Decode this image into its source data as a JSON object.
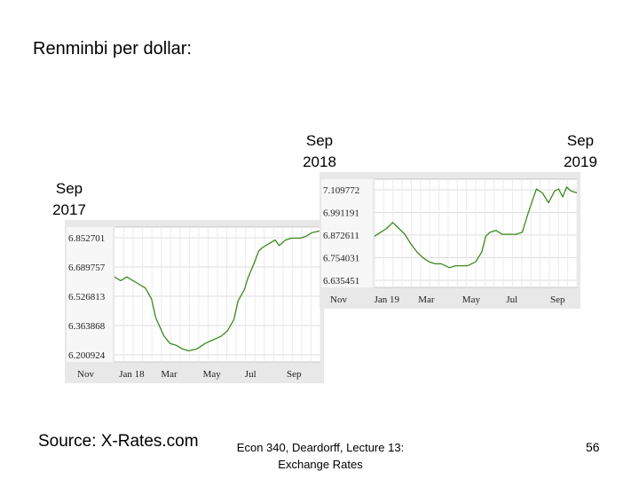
{
  "slide": {
    "title": "Renminbi per dollar:",
    "source": "Source:  X-Rates.com",
    "footer": "Econ 340, Deardorff, Lecture 13: Exchange Rates",
    "page_number": "56",
    "labels": {
      "sep2017": "Sep 2017",
      "sep2018": "Sep 2018",
      "sep2019": "Sep 2019"
    }
  },
  "colors": {
    "line": "#3c8a1e",
    "grid": "#dcdcdc",
    "axis_bg": "#e8e8e8"
  },
  "chart_data": [
    {
      "type": "line",
      "title": "",
      "xlabel": "",
      "ylabel": "",
      "grid": true,
      "x_ticks": [
        "Nov",
        "Jan 18",
        "Mar",
        "May",
        "Jul",
        "Sep"
      ],
      "y_ticks": [
        "6.852701",
        "6.689757",
        "6.526813",
        "6.363868",
        "6.200924"
      ],
      "ylim": [
        6.16,
        6.89
      ],
      "series": [
        {
          "x": [
            0,
            0.03,
            0.06,
            0.09,
            0.12,
            0.15,
            0.18,
            0.2,
            0.24,
            0.27,
            0.3,
            0.33,
            0.36,
            0.4,
            0.44,
            0.48,
            0.52,
            0.55,
            0.58,
            0.6,
            0.63,
            0.65,
            0.68,
            0.7,
            0.72,
            0.75,
            0.78,
            0.8,
            0.83,
            0.86,
            0.9,
            0.93,
            0.96,
            1.0
          ],
          "values": [
            6.62,
            6.6,
            6.62,
            6.6,
            6.58,
            6.56,
            6.5,
            6.4,
            6.3,
            6.26,
            6.25,
            6.23,
            6.22,
            6.23,
            6.26,
            6.28,
            6.3,
            6.33,
            6.39,
            6.49,
            6.55,
            6.62,
            6.7,
            6.76,
            6.78,
            6.8,
            6.82,
            6.79,
            6.82,
            6.83,
            6.83,
            6.84,
            6.86,
            6.87
          ]
        }
      ]
    },
    {
      "type": "line",
      "title": "",
      "xlabel": "",
      "ylabel": "",
      "grid": true,
      "x_ticks": [
        "Nov",
        "Jan 19",
        "Mar",
        "May",
        "Jul",
        "Sep"
      ],
      "y_ticks": [
        "7.109772",
        "6.991191",
        "6.872611",
        "6.754031",
        "6.635451"
      ],
      "ylim": [
        6.6,
        7.15
      ],
      "series": [
        {
          "x": [
            0,
            0.03,
            0.06,
            0.09,
            0.12,
            0.15,
            0.18,
            0.21,
            0.24,
            0.27,
            0.3,
            0.33,
            0.37,
            0.4,
            0.43,
            0.46,
            0.5,
            0.53,
            0.55,
            0.57,
            0.6,
            0.63,
            0.66,
            0.7,
            0.73,
            0.76,
            0.78,
            0.8,
            0.83,
            0.86,
            0.89,
            0.91,
            0.93,
            0.95,
            0.97,
            1.0
          ],
          "values": [
            6.86,
            6.88,
            6.9,
            6.93,
            6.9,
            6.87,
            6.82,
            6.78,
            6.75,
            6.73,
            6.72,
            6.72,
            6.7,
            6.71,
            6.71,
            6.71,
            6.73,
            6.78,
            6.86,
            6.88,
            6.89,
            6.87,
            6.87,
            6.87,
            6.88,
            6.98,
            7.04,
            7.1,
            7.08,
            7.03,
            7.09,
            7.1,
            7.06,
            7.11,
            7.09,
            7.08
          ]
        }
      ]
    }
  ]
}
